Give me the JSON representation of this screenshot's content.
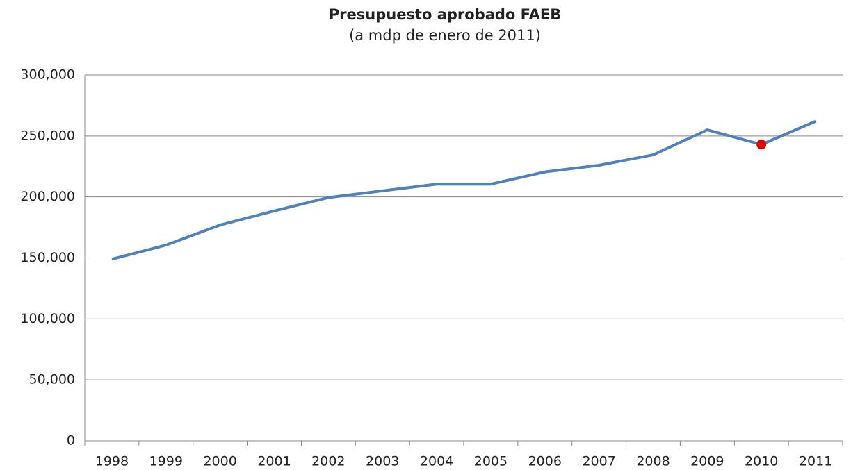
{
  "chart_data": {
    "type": "line",
    "title": "Presupuesto aprobado  FAEB",
    "subtitle": "(a mdp de enero de 2011)",
    "categories": [
      "1998",
      "1999",
      "2000",
      "2001",
      "2002",
      "2003",
      "2004",
      "2005",
      "2006",
      "2007",
      "2008",
      "2009",
      "2010",
      "2011"
    ],
    "series": [
      {
        "name": "FAEB",
        "color": "#4f81bd",
        "values": [
          149000,
          160500,
          177000,
          188500,
          199500,
          205000,
          210500,
          210500,
          220500,
          226000,
          234500,
          255000,
          243000,
          262000
        ]
      }
    ],
    "highlight_point": {
      "index": 12,
      "color": "#e00000"
    },
    "ylim": [
      0,
      300000
    ],
    "yticks": [
      0,
      {
        "value": 50000,
        "label": "50,000"
      },
      {
        "value": 100000,
        "label": "100,000"
      },
      {
        "value": 150000,
        "label": "150,000"
      },
      {
        "value": 200000,
        "label": "200,000"
      },
      {
        "value": 250000,
        "label": "250,000"
      },
      {
        "value": 300000,
        "label": "300,000"
      }
    ],
    "grid": true
  }
}
